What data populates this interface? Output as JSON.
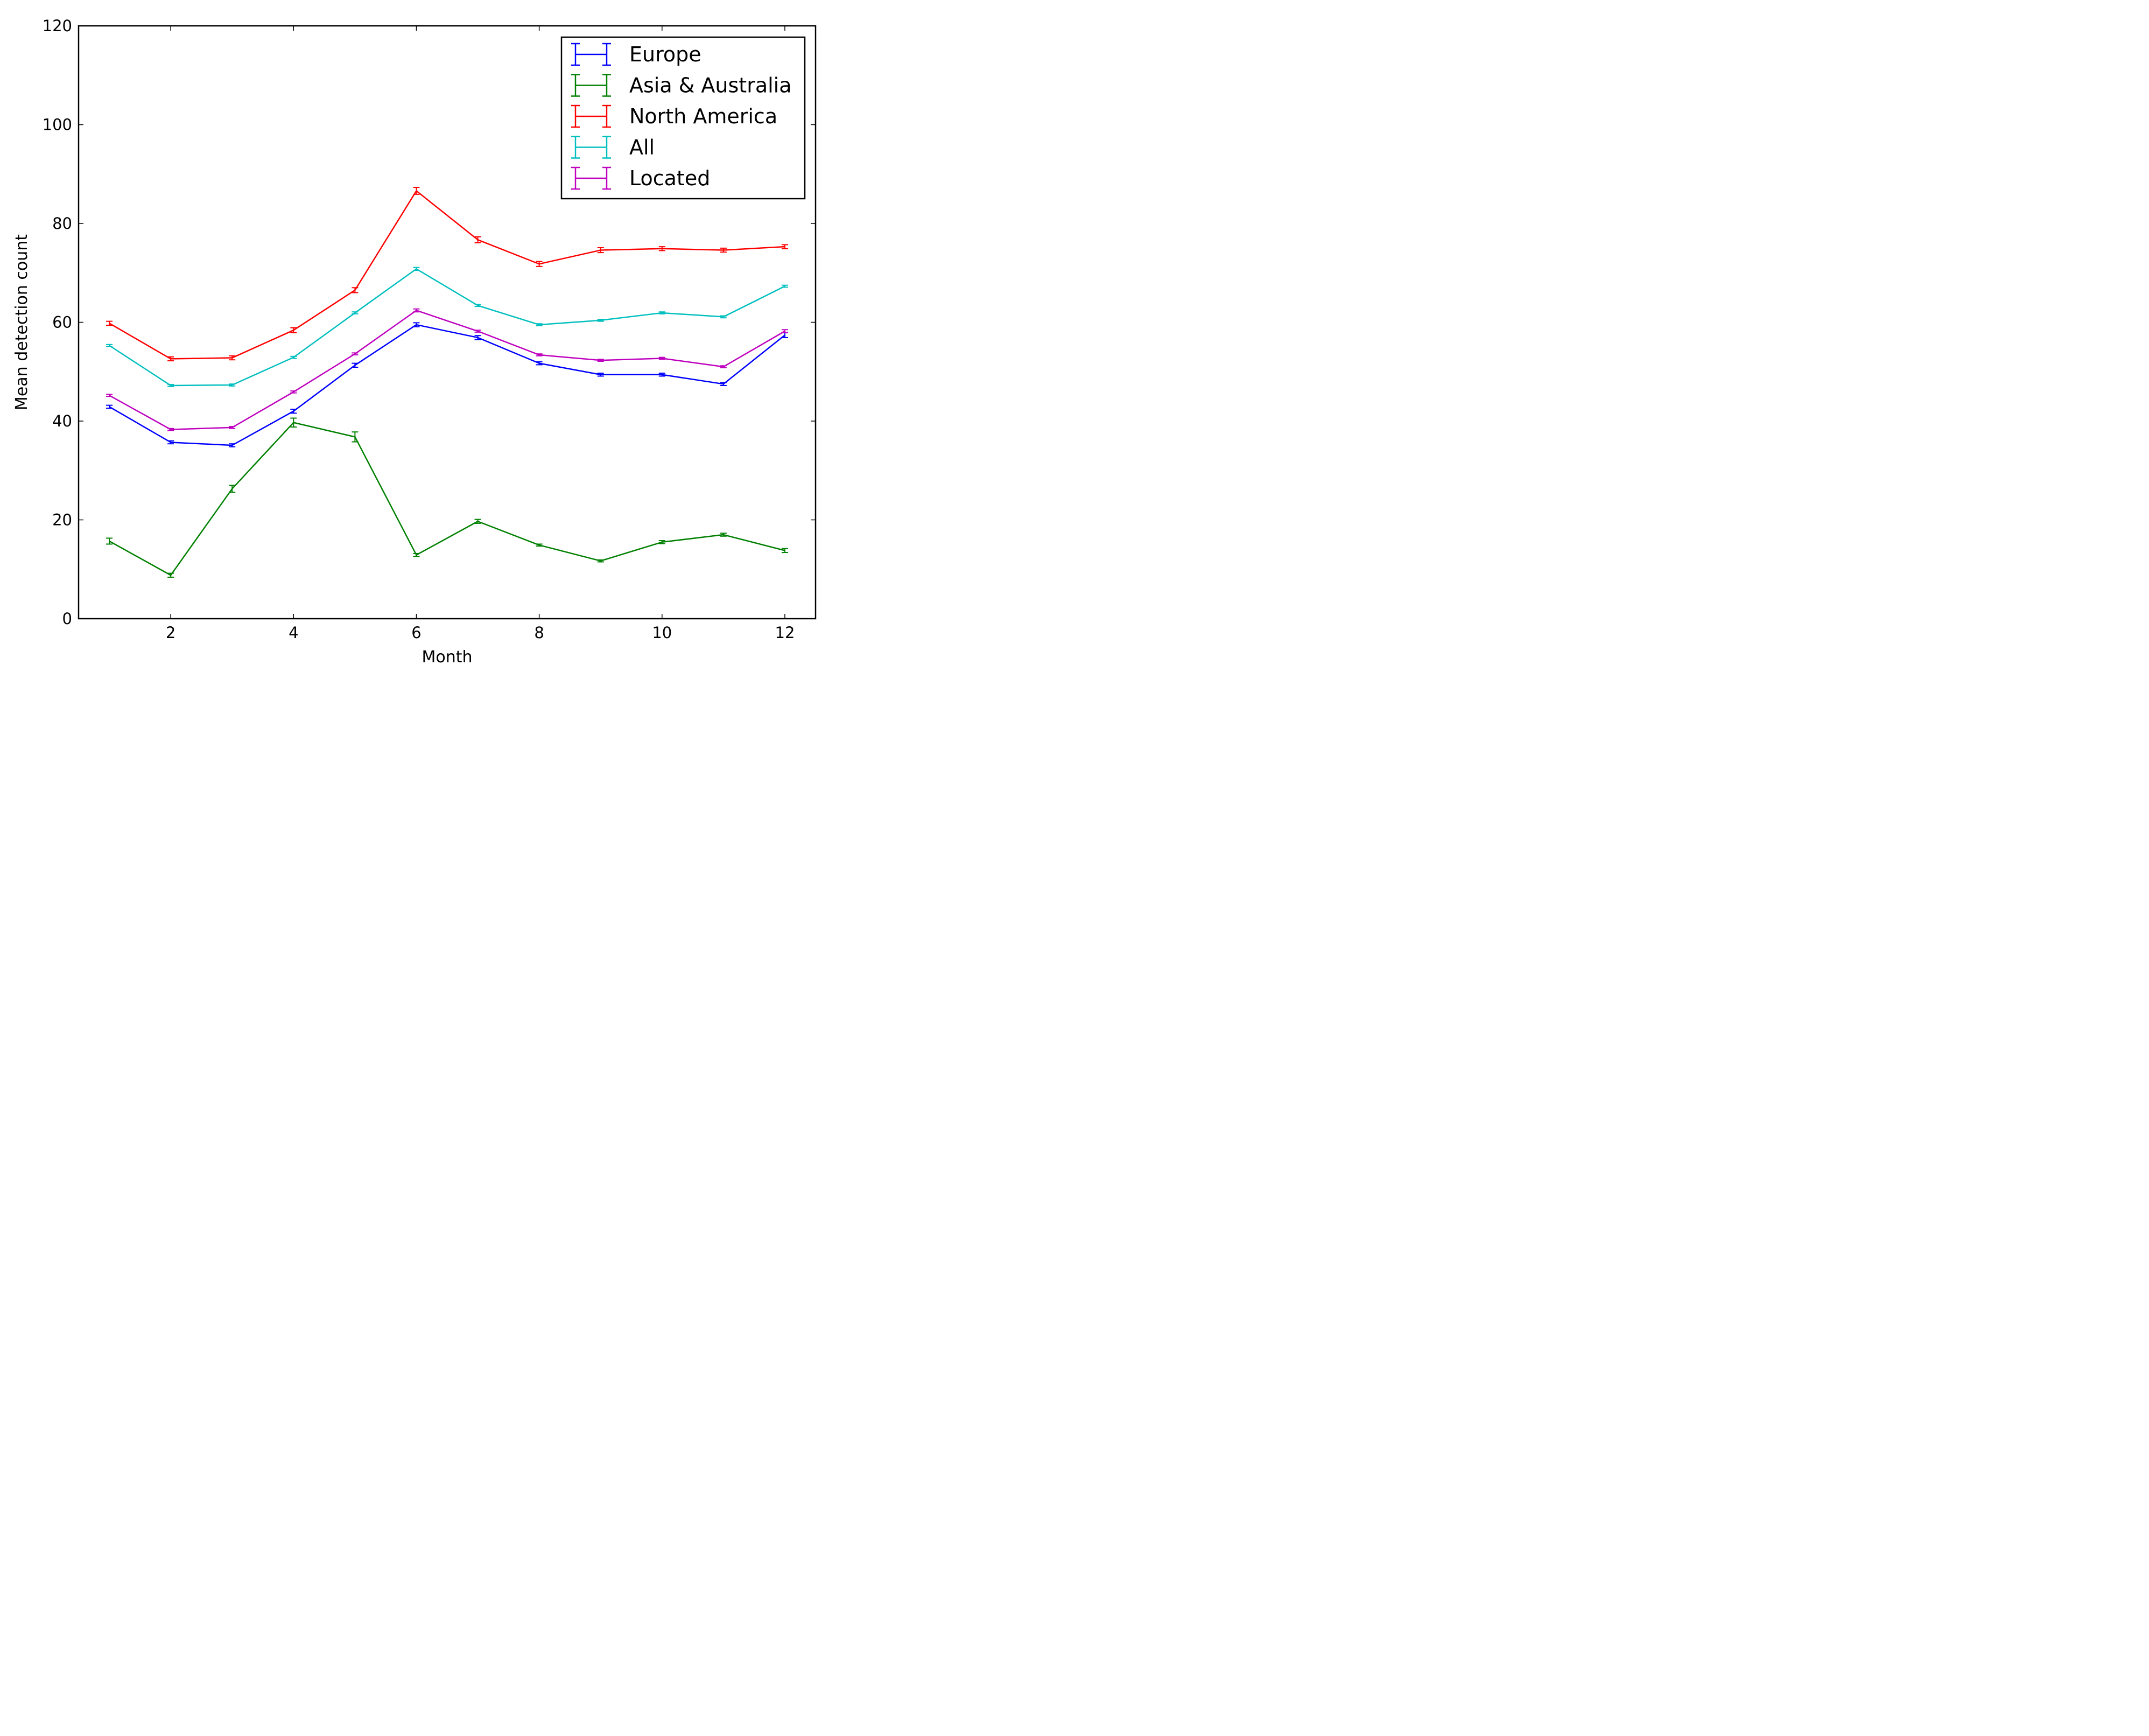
{
  "chart_data": {
    "type": "line",
    "title": "",
    "xlabel": "Month",
    "ylabel": "Mean detection count",
    "xlim": [
      0.5,
      12.5
    ],
    "ylim": [
      0,
      120
    ],
    "xticks": [
      2,
      4,
      6,
      8,
      10,
      12
    ],
    "yticks": [
      0,
      20,
      40,
      60,
      80,
      100,
      120
    ],
    "grid": false,
    "legend_position": "top-right",
    "x": [
      1,
      2,
      3,
      4,
      5,
      6,
      7,
      8,
      9,
      10,
      11,
      12
    ],
    "series": [
      {
        "name": "Europe",
        "color": "#0000ff",
        "values": [
          42.9,
          35.7,
          35.1,
          42.0,
          51.3,
          59.5,
          56.9,
          51.7,
          49.4,
          49.4,
          47.5,
          57.4
        ],
        "errors": [
          0.3,
          0.3,
          0.3,
          0.4,
          0.4,
          0.4,
          0.4,
          0.3,
          0.3,
          0.3,
          0.3,
          0.5
        ]
      },
      {
        "name": "Asia & Australia",
        "color": "#008000",
        "values": [
          15.7,
          8.8,
          26.3,
          39.7,
          36.8,
          12.9,
          19.7,
          14.9,
          11.7,
          15.5,
          17.0,
          13.8
        ],
        "errors": [
          0.6,
          0.4,
          0.7,
          0.9,
          1.0,
          0.3,
          0.4,
          0.2,
          0.2,
          0.3,
          0.3,
          0.4
        ]
      },
      {
        "name": "North America",
        "color": "#ff0000",
        "values": [
          59.8,
          52.6,
          52.8,
          58.4,
          66.5,
          86.6,
          76.7,
          71.8,
          74.6,
          74.9,
          74.6,
          75.3
        ],
        "errors": [
          0.4,
          0.4,
          0.4,
          0.5,
          0.5,
          0.7,
          0.6,
          0.5,
          0.5,
          0.4,
          0.4,
          0.4
        ]
      },
      {
        "name": "All",
        "color": "#00bfbf",
        "values": [
          55.3,
          47.2,
          47.3,
          52.9,
          61.9,
          70.8,
          63.4,
          59.5,
          60.4,
          61.9,
          61.1,
          67.3
        ],
        "errors": [
          0.2,
          0.2,
          0.2,
          0.2,
          0.2,
          0.3,
          0.2,
          0.2,
          0.2,
          0.2,
          0.2,
          0.2
        ]
      },
      {
        "name": "Located",
        "color": "#bf00bf",
        "values": [
          45.2,
          38.3,
          38.7,
          45.9,
          53.6,
          62.4,
          58.2,
          53.4,
          52.3,
          52.7,
          51.0,
          58.2
        ],
        "errors": [
          0.2,
          0.2,
          0.2,
          0.2,
          0.2,
          0.3,
          0.2,
          0.2,
          0.2,
          0.2,
          0.2,
          0.3
        ]
      }
    ]
  }
}
